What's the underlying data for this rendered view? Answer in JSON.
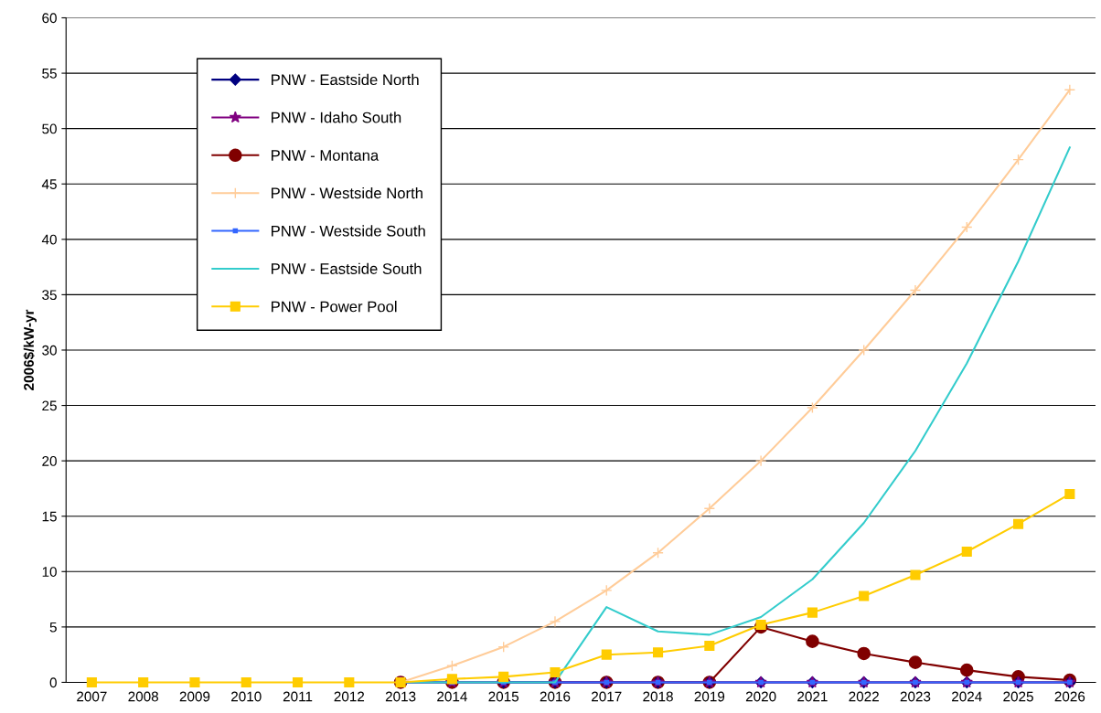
{
  "chart_data": {
    "type": "line",
    "ylabel": "2006$/kW-yr",
    "categories": [
      "2007",
      "2008",
      "2009",
      "2010",
      "2011",
      "2012",
      "2013",
      "2014",
      "2015",
      "2016",
      "2017",
      "2018",
      "2019",
      "2020",
      "2021",
      "2022",
      "2023",
      "2024",
      "2025",
      "2026"
    ],
    "ylim": [
      0,
      60
    ],
    "yticks": [
      0,
      5,
      10,
      15,
      20,
      25,
      30,
      35,
      40,
      45,
      50,
      55,
      60
    ],
    "grid": "y",
    "legend": "top left",
    "series": [
      {
        "name": "PNW - Eastside North",
        "color": "#000080",
        "marker": "diamond",
        "values": [
          null,
          null,
          null,
          null,
          null,
          null,
          null,
          null,
          0,
          0,
          0,
          0,
          0,
          0,
          0,
          0,
          0,
          0,
          0,
          0
        ]
      },
      {
        "name": "PNW - Idaho South",
        "color": "#800080",
        "marker": "star",
        "values": [
          null,
          null,
          null,
          null,
          null,
          null,
          0,
          0,
          0,
          0,
          0,
          0,
          0,
          0,
          0,
          0,
          0,
          0,
          0,
          0
        ]
      },
      {
        "name": "PNW - Montana",
        "color": "#800000",
        "marker": "circle",
        "values": [
          null,
          null,
          null,
          null,
          null,
          null,
          0,
          0,
          0,
          0,
          0,
          0,
          0,
          5.0,
          3.7,
          2.6,
          1.8,
          1.1,
          0.5,
          0.2
        ]
      },
      {
        "name": "PNW - Westside North",
        "color": "#ffcc99",
        "marker": "cross",
        "values": [
          null,
          null,
          null,
          null,
          null,
          null,
          0,
          1.5,
          3.2,
          5.5,
          8.3,
          11.7,
          15.7,
          20.0,
          24.8,
          30.0,
          35.4,
          41.1,
          47.2,
          53.5
        ]
      },
      {
        "name": "PNW - Westside South",
        "color": "#3366ff",
        "marker": "square",
        "values": [
          null,
          null,
          null,
          null,
          null,
          null,
          0,
          0,
          0,
          0,
          0,
          0,
          0,
          0,
          0,
          0,
          0,
          0,
          0,
          0
        ]
      },
      {
        "name": "PNW - Eastside South",
        "color": "#33cccc",
        "marker": "none",
        "values": [
          null,
          null,
          null,
          null,
          null,
          null,
          0,
          0,
          0,
          0,
          6.8,
          4.6,
          4.3,
          5.9,
          9.3,
          14.4,
          20.9,
          28.8,
          38.0,
          48.3
        ]
      },
      {
        "name": "PNW - Power Pool",
        "color": "#ffcc00",
        "marker": "square",
        "values": [
          0,
          0,
          0,
          0,
          0,
          0,
          0,
          0.3,
          0.5,
          0.9,
          2.5,
          2.7,
          3.3,
          5.2,
          6.3,
          7.8,
          9.7,
          11.8,
          14.3,
          17.0
        ]
      }
    ]
  }
}
